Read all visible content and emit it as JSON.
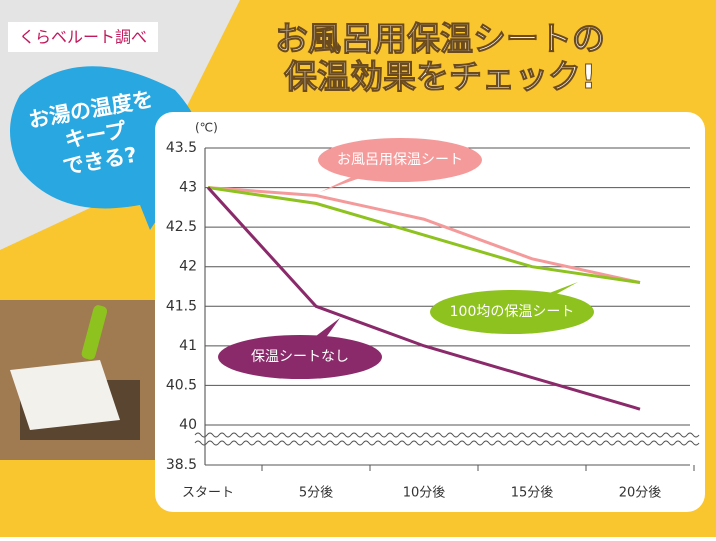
{
  "source": "くらベルート調べ",
  "bubble": [
    "お湯の温度を",
    "キープ",
    "できる?"
  ],
  "chart_data": {
    "type": "line",
    "title": [
      "お風呂用保温シートの",
      "保温効果をチェック!"
    ],
    "y_unit": "(℃)",
    "categories": [
      "スタート",
      "5分後",
      "10分後",
      "15分後",
      "20分後"
    ],
    "series": [
      {
        "name": "お風呂用保温シート",
        "color": "#f59a9a",
        "values": [
          43,
          42.9,
          42.6,
          42.1,
          41.8
        ]
      },
      {
        "name": "100均の保温シート",
        "color": "#8dc21f",
        "values": [
          43,
          42.8,
          42.4,
          42.0,
          41.8
        ]
      },
      {
        "name": "保温シートなし",
        "color": "#8b2a6b",
        "values": [
          43,
          41.5,
          41.0,
          40.6,
          40.2
        ]
      }
    ],
    "ylim": [
      38.5,
      43.5
    ],
    "yticks": [
      38.5,
      40,
      40.5,
      41,
      41.5,
      42,
      42.5,
      43,
      43.5
    ],
    "axis_break": [
      38.5,
      40
    ],
    "grid": true
  }
}
